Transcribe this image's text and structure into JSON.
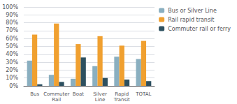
{
  "chart_data": {
    "type": "bar",
    "categories": [
      "Bus",
      "Commuter Rail",
      "Boat",
      "Silver Line",
      "Rapid Transit",
      "TOTAL"
    ],
    "series": [
      {
        "name": "Bus or Silver Line",
        "color": "#8aafc0",
        "values": [
          32,
          14,
          9,
          25,
          37,
          34
        ]
      },
      {
        "name": "Rail rapid transit",
        "color": "#f0a030",
        "values": [
          65,
          79,
          53,
          63,
          51,
          57
        ]
      },
      {
        "name": "Commuter rail or ferry",
        "color": "#2d5060",
        "values": [
          2,
          5,
          36,
          10,
          8,
          6
        ]
      }
    ],
    "ylim": [
      0,
      100
    ],
    "yticks": [
      {
        "value": 0,
        "label": "0%"
      },
      {
        "value": 10,
        "label": "10%"
      },
      {
        "value": 20,
        "label": "20%"
      },
      {
        "value": 30,
        "label": "30%"
      },
      {
        "value": 40,
        "label": "40%"
      },
      {
        "value": 50,
        "label": "50%"
      },
      {
        "value": 60,
        "label": "60%"
      },
      {
        "value": 70,
        "label": "70%"
      },
      {
        "value": 80,
        "label": "80%"
      },
      {
        "value": 90,
        "label": "90%"
      },
      {
        "value": 100,
        "label": "100%"
      }
    ],
    "grid": true,
    "legend": "upper right"
  }
}
